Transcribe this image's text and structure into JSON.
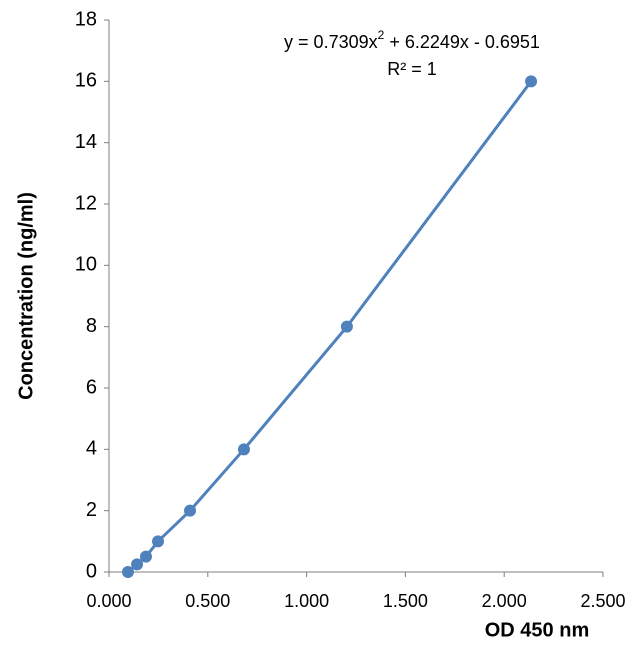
{
  "chart_data": {
    "type": "scatter",
    "x_label": "OD 450 nm",
    "y_label": "Concentration (ng/ml)",
    "equation": [
      "y = 0.7309x",
      "2",
      " + 6.2249x - 0.6951"
    ],
    "r_squared": "R² = 1",
    "series": [
      {
        "name": null,
        "color": "#4f81bd",
        "x": [
          0.096,
          0.142,
          0.187,
          0.248,
          0.41,
          0.683,
          1.204,
          2.136
        ],
        "values": [
          0,
          0.25,
          0.5,
          1,
          2,
          4,
          8,
          16
        ]
      }
    ],
    "xlim": [
      0,
      2.5
    ],
    "xticks": [
      {
        "value": 0,
        "label": "0.000"
      },
      {
        "value": 0.5,
        "label": "0.500"
      },
      {
        "value": 1,
        "label": "1.000"
      },
      {
        "value": 1.5,
        "label": "1.500"
      },
      {
        "value": 2,
        "label": "2.000"
      },
      {
        "value": 2.5,
        "label": "2.500"
      }
    ],
    "ylim": [
      0,
      18
    ],
    "yticks": [
      0,
      2,
      4,
      6,
      8,
      10,
      12,
      14,
      16,
      18
    ],
    "grid": false
  }
}
